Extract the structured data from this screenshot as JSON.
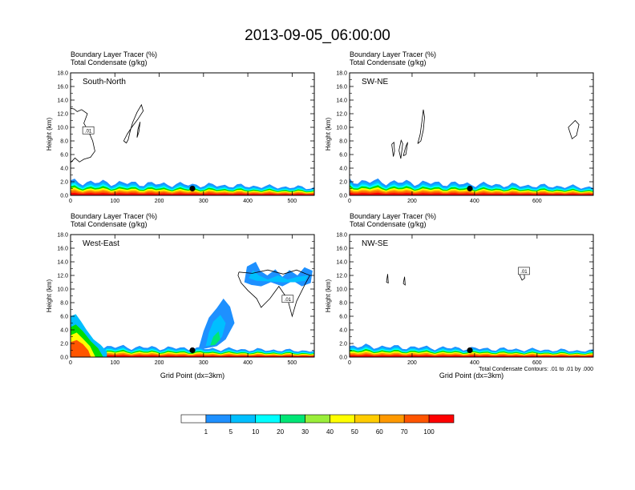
{
  "title": "2013-09-05_06:00:00",
  "colorbar": {
    "boundaries": [
      "1",
      "5",
      "10",
      "20",
      "30",
      "40",
      "50",
      "60",
      "70",
      "100"
    ],
    "colors": [
      "#ffffff",
      "#1e90ff",
      "#00bfff",
      "#00ffff",
      "#00e676",
      "#00dd00",
      "#9aee3a",
      "#ffff00",
      "#ffcc00",
      "#ff9900",
      "#ff5500",
      "#ff0000"
    ]
  },
  "chart_data": [
    {
      "type": "contour",
      "panel": "South-North",
      "title_line1": "Boundary Layer Tracer   (%)",
      "title_line2": "Total Condensate   (g/kg)",
      "ylabel": "Height (km)",
      "xlabel": "",
      "xlim": [
        0,
        550
      ],
      "xticks": [
        "100",
        "200",
        "300",
        "400",
        "500"
      ],
      "ylim": [
        0,
        18
      ],
      "yticks": [
        "0.0",
        "2.0",
        "4.0",
        "6.0",
        "8.0",
        "10.0",
        "12.0",
        "14.0",
        "16.0",
        "18.0"
      ],
      "contour_label": ".01",
      "marker_x": 275,
      "tracer_top_km": 1.6,
      "contours": [
        [
          [
            0,
            4.8
          ],
          [
            10,
            5.5
          ],
          [
            20,
            4.9
          ],
          [
            30,
            5.3
          ],
          [
            45,
            5.6
          ],
          [
            55,
            6.5
          ],
          [
            50,
            8
          ],
          [
            40,
            9.5
          ],
          [
            30,
            10.6
          ],
          [
            38,
            12
          ],
          [
            25,
            12.6
          ],
          [
            15,
            12.3
          ],
          [
            8,
            12.7
          ],
          [
            0,
            12.8
          ]
        ],
        [
          [
            120,
            8.0
          ],
          [
            126,
            7.7
          ],
          [
            130,
            8.2
          ],
          [
            134,
            9.3
          ],
          [
            140,
            10.7
          ],
          [
            150,
            12.2
          ],
          [
            160,
            13.3
          ],
          [
            164,
            12.4
          ],
          [
            152,
            11.2
          ],
          [
            138,
            10.0
          ],
          [
            128,
            9.0
          ],
          [
            120,
            8.0
          ]
        ],
        [
          [
            150,
            8.5
          ],
          [
            154,
            9.3
          ],
          [
            157,
            10.8
          ],
          [
            152,
            9.7
          ],
          [
            150,
            8.5
          ]
        ]
      ]
    },
    {
      "type": "contour",
      "panel": "SW-NE",
      "title_line1": "Boundary Layer Tracer   (%)",
      "title_line2": "Total Condensate   (g/kg)",
      "ylabel": "Height (km)",
      "xlabel": "",
      "xlim": [
        0,
        780
      ],
      "xticks": [
        "200",
        "400",
        "600"
      ],
      "ylim": [
        0,
        18
      ],
      "yticks": [
        "0.0",
        "2.0",
        "4.0",
        "6.0",
        "8.0",
        "10.0",
        "12.0",
        "14.0",
        "16.0",
        "18.0"
      ],
      "contour_label": "",
      "marker_x": 385,
      "tracer_top_km": 1.7,
      "contours": [
        [
          [
            218,
            7.6
          ],
          [
            226,
            9.0
          ],
          [
            232,
            11.0
          ],
          [
            236,
            12.6
          ],
          [
            240,
            11.5
          ],
          [
            236,
            9.6
          ],
          [
            228,
            8.0
          ],
          [
            218,
            7.6
          ]
        ],
        [
          [
            135,
            7.5
          ],
          [
            140,
            5.7
          ],
          [
            144,
            6.5
          ],
          [
            142,
            7.8
          ],
          [
            135,
            7.5
          ]
        ],
        [
          [
            158,
            6.6
          ],
          [
            164,
            5.4
          ],
          [
            170,
            7.6
          ],
          [
            165,
            8.1
          ],
          [
            158,
            6.6
          ]
        ],
        [
          [
            172,
            5.8
          ],
          [
            180,
            7.2
          ],
          [
            186,
            7.8
          ],
          [
            180,
            6.0
          ],
          [
            172,
            5.8
          ]
        ],
        [
          [
            700,
            10.0
          ],
          [
            712,
            8.3
          ],
          [
            726,
            8.8
          ],
          [
            734,
            10.4
          ],
          [
            722,
            11.0
          ],
          [
            700,
            10.0
          ]
        ]
      ]
    },
    {
      "type": "contour",
      "panel": "West-East",
      "title_line1": "Boundary Layer Tracer   (%)",
      "title_line2": "Total Condensate   (g/kg)",
      "ylabel": "Height (km)",
      "xlabel": "Grid Point (dx=3km)",
      "xlim": [
        0,
        550
      ],
      "xticks": [
        "100",
        "200",
        "300",
        "400",
        "500"
      ],
      "ylim": [
        0,
        18
      ],
      "yticks": [
        "0.0",
        "2.0",
        "4.0",
        "6.0",
        "8.0",
        "10.0",
        "12.0",
        "14.0",
        "16.0",
        "18.0"
      ],
      "contour_label": ".01",
      "marker_x": 275,
      "tracer_top_km": 1.3,
      "contours": [
        [
          [
            380,
            12.5
          ],
          [
            410,
            12.3
          ],
          [
            445,
            12.8
          ],
          [
            480,
            12.2
          ],
          [
            510,
            12.8
          ],
          [
            540,
            12.0
          ],
          [
            530,
            10.8
          ],
          [
            510,
            8.2
          ],
          [
            500,
            6.0
          ],
          [
            490,
            8.5
          ],
          [
            470,
            10.4
          ],
          [
            450,
            8.6
          ],
          [
            430,
            7.3
          ],
          [
            420,
            8.6
          ],
          [
            400,
            9.8
          ],
          [
            385,
            10.9
          ],
          [
            378,
            12.0
          ],
          [
            380,
            12.5
          ]
        ]
      ]
    },
    {
      "type": "contour",
      "panel": "NW-SE",
      "title_line1": "Boundary Layer Tracer   (%)",
      "title_line2": "Total Condensate   (g/kg)",
      "ylabel": "Height (km)",
      "xlabel": "Grid Point (dx=3km)",
      "note": "Total Condensate Contours: .01 to .01 by .000",
      "xlim": [
        0,
        780
      ],
      "xticks": [
        "200",
        "400",
        "600"
      ],
      "ylim": [
        0,
        18
      ],
      "yticks": [
        "0.0",
        "2.0",
        "4.0",
        "6.0",
        "8.0",
        "10.0",
        "12.0",
        "14.0",
        "16.0",
        "18.0"
      ],
      "contour_label": ".01",
      "marker_x": 385,
      "tracer_top_km": 1.3,
      "contours": [
        [
          [
            545,
            12.0
          ],
          [
            552,
            11.3
          ],
          [
            560,
            11.6
          ],
          [
            558,
            12.6
          ],
          [
            550,
            12.8
          ],
          [
            545,
            12.0
          ]
        ],
        [
          [
            118,
            11.0
          ],
          [
            122,
            12.2
          ],
          [
            124,
            10.9
          ],
          [
            118,
            11.0
          ]
        ],
        [
          [
            172,
            10.8
          ],
          [
            176,
            11.8
          ],
          [
            178,
            10.6
          ],
          [
            172,
            10.8
          ]
        ]
      ]
    }
  ]
}
